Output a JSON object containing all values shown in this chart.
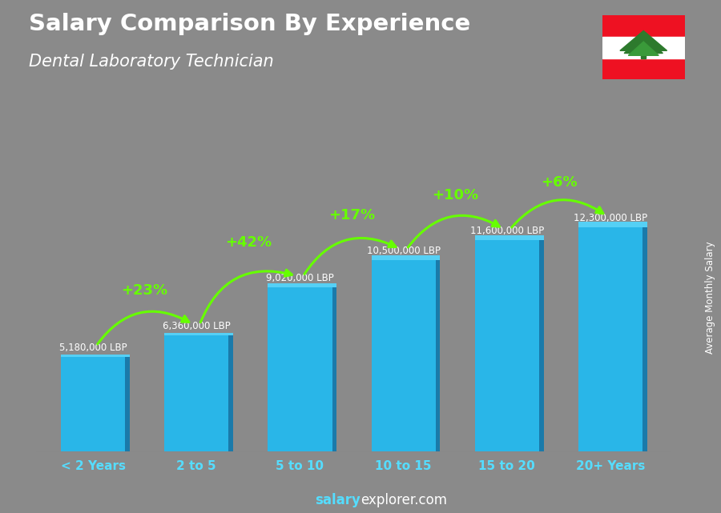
{
  "title": "Salary Comparison By Experience",
  "subtitle": "Dental Laboratory Technician",
  "categories": [
    "< 2 Years",
    "2 to 5",
    "5 to 10",
    "10 to 15",
    "15 to 20",
    "20+ Years"
  ],
  "values": [
    5180000,
    6360000,
    9020000,
    10500000,
    11600000,
    12300000
  ],
  "labels": [
    "5,180,000 LBP",
    "6,360,000 LBP",
    "9,020,000 LBP",
    "10,500,000 LBP",
    "11,600,000 LBP",
    "12,300,000 LBP"
  ],
  "pct_labels": [
    "+23%",
    "+42%",
    "+17%",
    "+10%",
    "+6%"
  ],
  "bar_color": "#29b6e8",
  "bar_dark": "#1a7aaa",
  "bar_side": "#1e90c0",
  "bg_color": "#8a8a8a",
  "title_color": "#ffffff",
  "subtitle_color": "#ffffff",
  "label_color": "#ffffff",
  "pct_color": "#66ff00",
  "cat_color": "#55ddff",
  "footer_salary_color": "#55ddff",
  "footer_rest_color": "#ffffff",
  "right_label": "Average Monthly Salary",
  "ylim": [
    0,
    15500000
  ],
  "footer_text_salary": "salary",
  "footer_text_rest": "explorer.com"
}
